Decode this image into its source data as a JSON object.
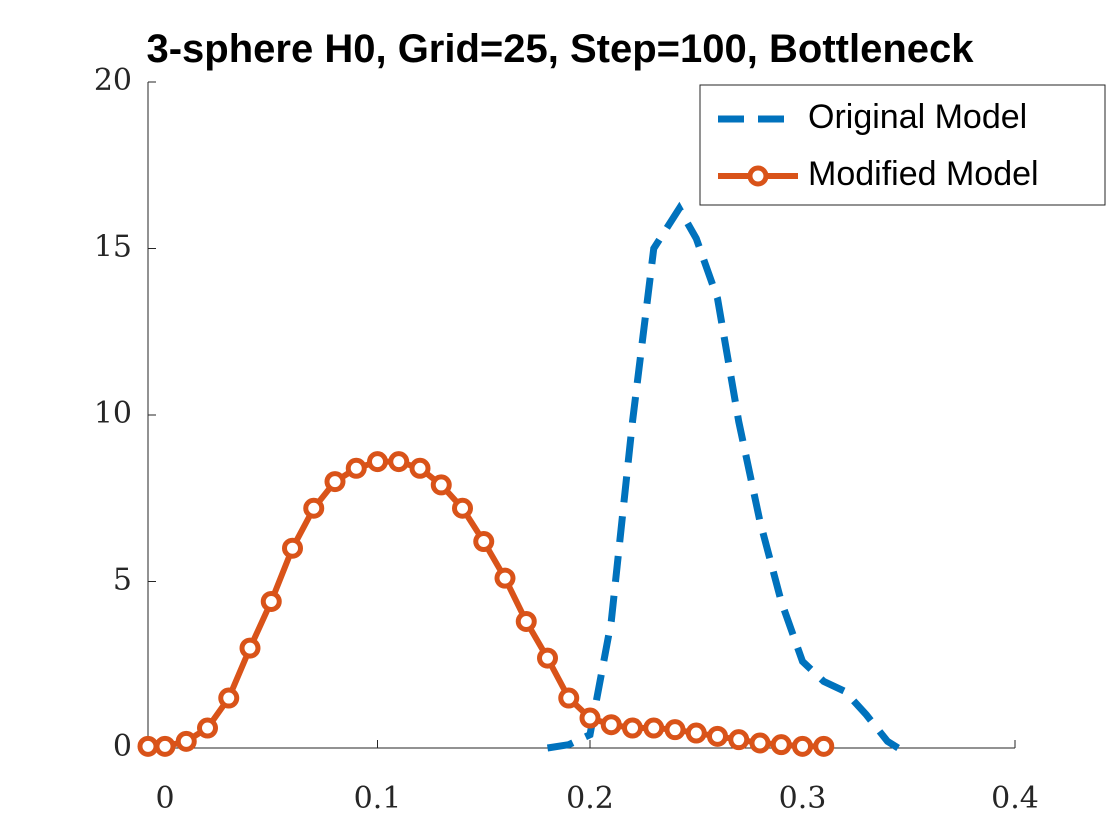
{
  "chart_data": {
    "type": "line",
    "title": "3-sphere H0, Grid=25, Step=100, Bottleneck",
    "xlim": [
      -0.008,
      0.4
    ],
    "ylim": [
      0,
      20
    ],
    "xticks": [
      0,
      0.1,
      0.2,
      0.3,
      0.4
    ],
    "yticks": [
      0,
      5,
      10,
      15,
      20
    ],
    "legend": "upper right",
    "series": [
      {
        "name": "Original Model",
        "color": "#0072bd",
        "style": "dashed",
        "x": [
          0.18,
          0.19,
          0.2,
          0.21,
          0.22,
          0.23,
          0.242,
          0.25,
          0.26,
          0.27,
          0.28,
          0.29,
          0.3,
          0.31,
          0.32,
          0.33,
          0.34,
          0.345
        ],
        "values": [
          0,
          0.1,
          0.4,
          3.8,
          9.8,
          15,
          16.2,
          15.3,
          13.5,
          9.8,
          6.8,
          4.4,
          2.6,
          2.0,
          1.7,
          1.0,
          0.2,
          0
        ]
      },
      {
        "name": "Modified Model",
        "color": "#d95319",
        "style": "solid-circle",
        "x": [
          -0.008,
          0,
          0.01,
          0.02,
          0.03,
          0.04,
          0.05,
          0.06,
          0.07,
          0.08,
          0.09,
          0.1,
          0.11,
          0.12,
          0.13,
          0.14,
          0.15,
          0.16,
          0.17,
          0.18,
          0.19,
          0.2,
          0.21,
          0.22,
          0.23,
          0.24,
          0.25,
          0.26,
          0.27,
          0.28,
          0.29,
          0.3,
          0.31
        ],
        "values": [
          0.05,
          0.05,
          0.2,
          0.6,
          1.5,
          3,
          4.4,
          6,
          7.2,
          8,
          8.4,
          8.6,
          8.6,
          8.4,
          7.9,
          7.2,
          6.2,
          5.1,
          3.8,
          2.7,
          1.5,
          0.9,
          0.7,
          0.6,
          0.6,
          0.55,
          0.45,
          0.35,
          0.25,
          0.15,
          0.1,
          0.05,
          0.05
        ]
      }
    ]
  }
}
